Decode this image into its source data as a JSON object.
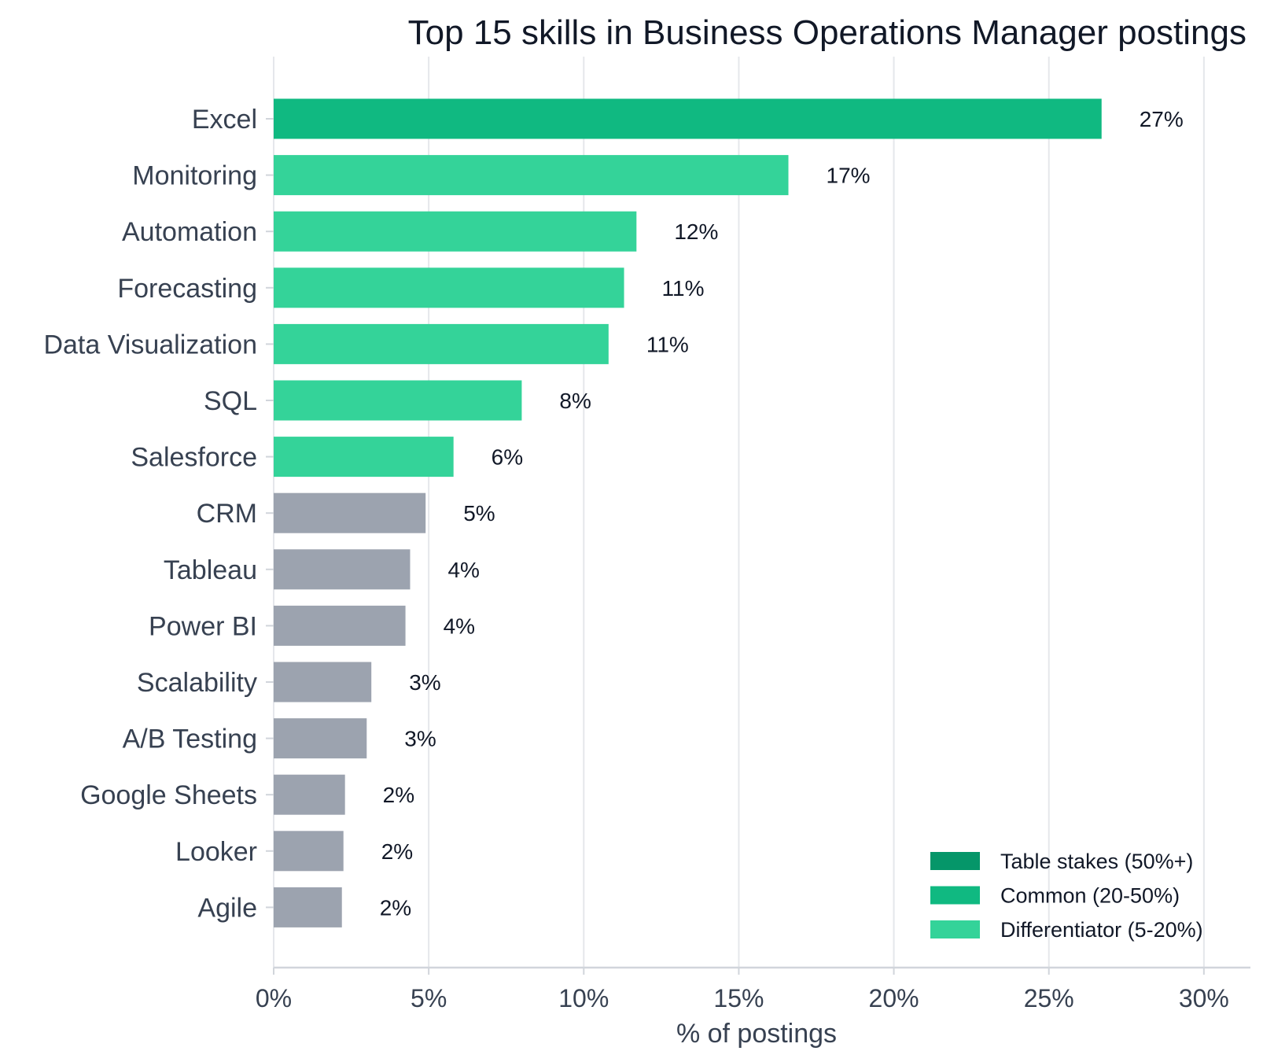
{
  "chart_data": {
    "type": "bar",
    "orientation": "horizontal",
    "title": "Top 15 skills in Business Operations Manager postings",
    "xlabel": "% of postings",
    "ylabel": "",
    "xlim": [
      0,
      31.5
    ],
    "x_ticks": [
      0,
      5,
      10,
      15,
      20,
      25,
      30
    ],
    "x_tick_labels": [
      "0%",
      "5%",
      "10%",
      "15%",
      "20%",
      "25%",
      "30%"
    ],
    "grid": "vertical",
    "legend_position": "bottom-right",
    "categories": [
      "Excel",
      "Monitoring",
      "Automation",
      "Forecasting",
      "Data Visualization",
      "SQL",
      "Salesforce",
      "CRM",
      "Tableau",
      "Power BI",
      "Scalability",
      "A/B Testing",
      "Google Sheets",
      "Looker",
      "Agile"
    ],
    "values": [
      26.7,
      16.6,
      11.7,
      11.3,
      10.8,
      8.0,
      5.8,
      4.9,
      4.4,
      4.25,
      3.15,
      3.0,
      2.3,
      2.25,
      2.2
    ],
    "value_labels": [
      "27%",
      "17%",
      "12%",
      "11%",
      "11%",
      "8%",
      "6%",
      "5%",
      "4%",
      "4%",
      "3%",
      "3%",
      "2%",
      "2%",
      "2%"
    ],
    "bar_tiers": [
      "common",
      "differentiator",
      "differentiator",
      "differentiator",
      "differentiator",
      "differentiator",
      "differentiator",
      "other",
      "other",
      "other",
      "other",
      "other",
      "other",
      "other",
      "other"
    ],
    "legend": [
      {
        "key": "table_stakes",
        "label": "Table stakes (50%+)",
        "color": "#059669"
      },
      {
        "key": "common",
        "label": "Common (20-50%)",
        "color": "#10b981"
      },
      {
        "key": "differentiator",
        "label": "Differentiator (5-20%)",
        "color": "#34d399"
      }
    ],
    "colors": {
      "common": "#10b981",
      "differentiator": "#34d399",
      "other": "#9ca3af",
      "grid": "#e5e7eb",
      "axis": "#d1d5db"
    }
  }
}
